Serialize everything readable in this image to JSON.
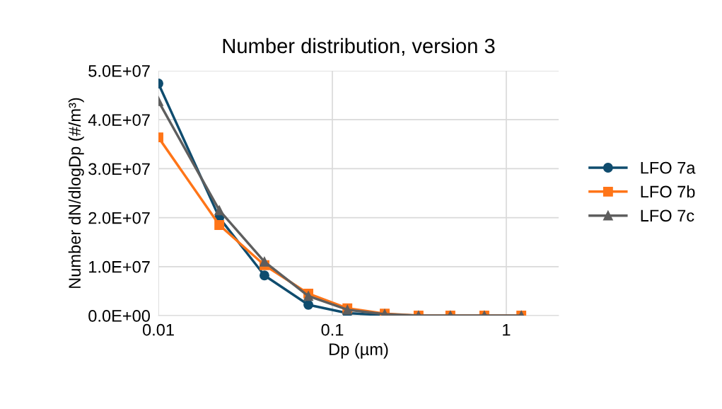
{
  "chart_data": {
    "type": "line",
    "title": "Number distribution, version 3",
    "xlabel": "Dp (µm)",
    "ylabel": "Number dN/dlogDp (#/m³)",
    "x": [
      0.01,
      0.0224,
      0.0407,
      0.0728,
      0.122,
      0.2,
      0.313,
      0.477,
      0.748,
      1.22
    ],
    "series": [
      {
        "name": "LFO 7a",
        "color": "#0f4c6e",
        "marker": "circle",
        "values": [
          47400000,
          20000000,
          8200000,
          2200000,
          500000,
          100000,
          0,
          null,
          null,
          null
        ]
      },
      {
        "name": "LFO 7b",
        "color": "#ff7518",
        "marker": "square",
        "values": [
          36400000,
          18500000,
          10300000,
          4500000,
          1500000,
          400000,
          0,
          0,
          0,
          0
        ]
      },
      {
        "name": "LFO 7c",
        "color": "#5e5e5e",
        "marker": "triangle",
        "values": [
          43800000,
          21500000,
          11000000,
          4000000,
          1200000,
          300000,
          0,
          0,
          0,
          0
        ]
      }
    ],
    "log": "x",
    "xlim": [
      0.01,
      2
    ],
    "xticks": [
      0.01,
      0.1,
      1
    ],
    "ylim": [
      0,
      50000000
    ],
    "yticks": [
      {
        "value": 0,
        "label": "0.0E+00"
      },
      {
        "value": 10000000,
        "label": "1.0E+07"
      },
      {
        "value": 20000000,
        "label": "2.0E+07"
      },
      {
        "value": 30000000,
        "label": "3.0E+07"
      },
      {
        "value": 40000000,
        "label": "4.0E+07"
      },
      {
        "value": 50000000,
        "label": "5.0E+07"
      }
    ],
    "grid": true,
    "legend": "right",
    "line_style": "solid"
  }
}
